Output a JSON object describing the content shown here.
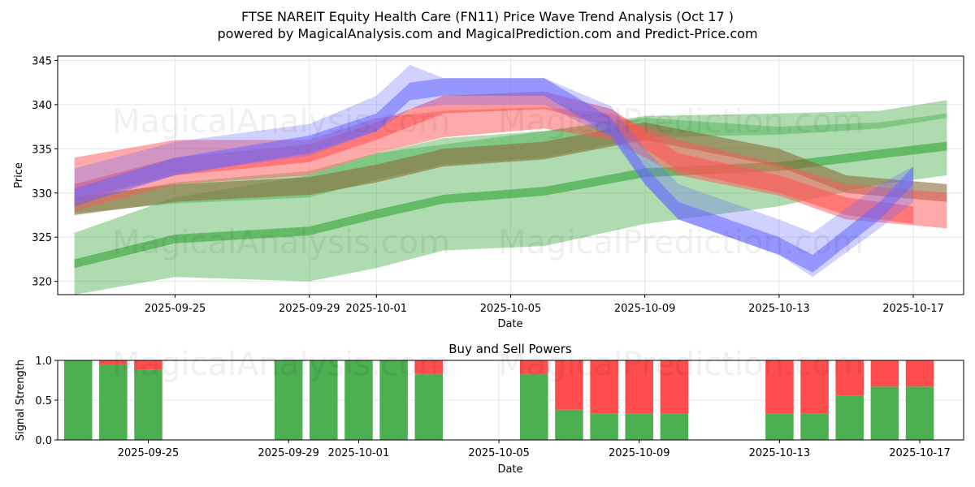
{
  "titles": {
    "line1": "FTSE NAREIT Equity Health Care (FN11) Price Wave Trend Analysis (Oct 17 )",
    "line2": "powered by MagicalAnalysis.com and MagicalPrediction.com and Predict-Price.com"
  },
  "watermarks": [
    "MagicalAnalysis.com",
    "MagicalPrediction.com"
  ],
  "colors": {
    "blue_band": "#6666ff",
    "red_band": "#ff5555",
    "green_band": "#4caf50",
    "brown_band": "#8b6a3a",
    "buy": "#4caf50",
    "sell": "#ff4c4c",
    "grid": "#e6e6e6"
  },
  "chart_data": [
    {
      "type": "area",
      "title": "",
      "xlabel": "Date",
      "ylabel": "Price",
      "x_range": [
        "2025-09-21T12:00",
        "2025-10-18T12:00"
      ],
      "ylim": [
        318.5,
        345.5
      ],
      "yticks": [
        320,
        325,
        330,
        335,
        340,
        345
      ],
      "xticks": [
        {
          "date": "2025-09-25",
          "label": "2025-09-25"
        },
        {
          "date": "2025-09-29",
          "label": "2025-09-29"
        },
        {
          "date": "2025-10-01",
          "label": "2025-10-01"
        },
        {
          "date": "2025-10-05",
          "label": "2025-10-05"
        },
        {
          "date": "2025-10-09",
          "label": "2025-10-09"
        },
        {
          "date": "2025-10-13",
          "label": "2025-10-13"
        },
        {
          "date": "2025-10-17",
          "label": "2025-10-17"
        }
      ],
      "grid": true,
      "bands": [
        {
          "name": "green-wide-lower",
          "color": "green",
          "opacity": 0.45,
          "points": [
            [
              "2025-09-22",
              322
            ],
            [
              "2025-09-25",
              325
            ],
            [
              "2025-09-29",
              326
            ],
            [
              "2025-10-01",
              328
            ],
            [
              "2025-10-03",
              329.5
            ],
            [
              "2025-10-06",
              330.5
            ],
            [
              "2025-10-09",
              332.5
            ],
            [
              "2025-10-13",
              333
            ],
            [
              "2025-10-16",
              334.5
            ],
            [
              "2025-10-18",
              335.5
            ]
          ],
          "half_width": [
            3.5,
            4.5,
            6,
            6.5,
            6,
            6.5,
            6,
            4.5,
            3.5,
            3.5
          ]
        },
        {
          "name": "green-narrow-lower",
          "color": "green",
          "opacity": 0.75,
          "points": [
            [
              "2025-09-22",
              322
            ],
            [
              "2025-09-25",
              324.8
            ],
            [
              "2025-09-29",
              325.7
            ],
            [
              "2025-10-01",
              327.6
            ],
            [
              "2025-10-03",
              329.3
            ],
            [
              "2025-10-06",
              330.2
            ],
            [
              "2025-10-09",
              332.3
            ],
            [
              "2025-10-13",
              333
            ],
            [
              "2025-10-16",
              334.4
            ],
            [
              "2025-10-18",
              335.3
            ]
          ],
          "half_width": [
            0.5,
            0.5,
            0.5,
            0.5,
            0.5,
            0.5,
            0.5,
            0.5,
            0.5,
            0.5
          ]
        },
        {
          "name": "green-wide-upper",
          "color": "green",
          "opacity": 0.45,
          "points": [
            [
              "2025-09-22",
              328.5
            ],
            [
              "2025-09-25",
              330
            ],
            [
              "2025-09-29",
              331
            ],
            [
              "2025-10-01",
              333
            ],
            [
              "2025-10-03",
              334.7
            ],
            [
              "2025-10-06",
              335.5
            ],
            [
              "2025-10-09",
              337.5
            ],
            [
              "2025-10-13",
              337.8
            ],
            [
              "2025-10-16",
              338.3
            ],
            [
              "2025-10-18",
              339.5
            ]
          ],
          "half_width": [
            0.8,
            1.2,
            1.5,
            1.5,
            1.5,
            1.5,
            1.2,
            1.2,
            1,
            1
          ]
        },
        {
          "name": "brown-band",
          "color": "brown",
          "opacity": 0.6,
          "points": [
            [
              "2025-09-22",
              328.5
            ],
            [
              "2025-09-25",
              330
            ],
            [
              "2025-09-29",
              330.8
            ],
            [
              "2025-10-01",
              332.2
            ],
            [
              "2025-10-03",
              334
            ],
            [
              "2025-10-06",
              334.8
            ],
            [
              "2025-10-09",
              337
            ],
            [
              "2025-10-11",
              335.5
            ],
            [
              "2025-10-13",
              334
            ],
            [
              "2025-10-15",
              331
            ],
            [
              "2025-10-18",
              330
            ]
          ],
          "half_width": [
            1,
            1,
            1,
            1,
            1,
            1,
            1,
            1,
            1,
            1,
            1
          ]
        },
        {
          "name": "red-wide",
          "color": "red",
          "opacity": 0.5,
          "points": [
            [
              "2025-09-22",
              331
            ],
            [
              "2025-09-25",
              333.5
            ],
            [
              "2025-09-29",
              334
            ],
            [
              "2025-10-01",
              336.5
            ],
            [
              "2025-10-03",
              337.8
            ],
            [
              "2025-10-06",
              338.5
            ],
            [
              "2025-10-08",
              337.5
            ],
            [
              "2025-10-10",
              334
            ],
            [
              "2025-10-13",
              331.5
            ],
            [
              "2025-10-15",
              329
            ],
            [
              "2025-10-18",
              328
            ]
          ],
          "half_width": [
            3,
            2.5,
            2,
            2,
            1.5,
            1.2,
            1.5,
            2,
            1.8,
            2,
            2
          ]
        },
        {
          "name": "red-narrow",
          "color": "red",
          "opacity": 0.6,
          "points": [
            [
              "2025-09-22",
              330
            ],
            [
              "2025-09-25",
              333
            ],
            [
              "2025-09-29",
              334.5
            ],
            [
              "2025-10-01",
              337
            ],
            [
              "2025-10-03",
              340
            ],
            [
              "2025-10-06",
              340.5
            ],
            [
              "2025-10-08",
              338.5
            ],
            [
              "2025-10-10",
              333.5
            ],
            [
              "2025-10-13",
              331
            ],
            [
              "2025-10-15",
              328.5
            ],
            [
              "2025-10-17",
              327.5
            ]
          ],
          "half_width": [
            1,
            1,
            1,
            1,
            1,
            1,
            1,
            1,
            1,
            1,
            1
          ]
        },
        {
          "name": "blue-wide",
          "color": "blue",
          "opacity": 0.3,
          "points": [
            [
              "2025-09-22",
              331
            ],
            [
              "2025-09-25",
              334
            ],
            [
              "2025-09-29",
              336
            ],
            [
              "2025-10-01",
              339
            ],
            [
              "2025-10-02",
              342
            ],
            [
              "2025-10-03",
              341.5
            ],
            [
              "2025-10-06",
              341.5
            ],
            [
              "2025-10-08",
              338
            ],
            [
              "2025-10-09",
              333
            ],
            [
              "2025-10-10",
              329
            ],
            [
              "2025-10-13",
              325
            ],
            [
              "2025-10-14",
              323
            ],
            [
              "2025-10-16",
              328.5
            ],
            [
              "2025-10-17",
              331
            ]
          ],
          "half_width": [
            1.8,
            1.8,
            1.8,
            2,
            2.5,
            1.5,
            1.5,
            1.8,
            2,
            2,
            2,
            2.5,
            2.5,
            2
          ]
        },
        {
          "name": "blue-narrow",
          "color": "blue",
          "opacity": 0.55,
          "points": [
            [
              "2025-09-22",
              329.5
            ],
            [
              "2025-09-25",
              333
            ],
            [
              "2025-09-29",
              335.5
            ],
            [
              "2025-10-01",
              338
            ],
            [
              "2025-10-02",
              341.5
            ],
            [
              "2025-10-03",
              342
            ],
            [
              "2025-10-06",
              342
            ],
            [
              "2025-10-08",
              337.5
            ],
            [
              "2025-10-09",
              332
            ],
            [
              "2025-10-10",
              328
            ],
            [
              "2025-10-13",
              324
            ],
            [
              "2025-10-14",
              322
            ],
            [
              "2025-10-16",
              328
            ],
            [
              "2025-10-17",
              332
            ]
          ],
          "half_width": [
            1,
            1,
            1,
            1,
            1,
            1,
            1,
            1,
            1,
            1,
            1,
            1,
            1,
            1
          ]
        }
      ]
    },
    {
      "type": "bar",
      "title": "Buy and Sell Powers",
      "xlabel": "Date",
      "ylabel": "Signal Strength",
      "ylim": [
        0,
        1.0
      ],
      "yticks": [
        0.0,
        0.5,
        1.0
      ],
      "ytick_labels": [
        "0.0",
        "0.5",
        "1.0"
      ],
      "xticks": [
        {
          "date": "2025-09-25",
          "label": "2025-09-25"
        },
        {
          "date": "2025-09-29",
          "label": "2025-09-29"
        },
        {
          "date": "2025-10-01",
          "label": "2025-10-01"
        },
        {
          "date": "2025-10-05",
          "label": "2025-10-05"
        },
        {
          "date": "2025-10-09",
          "label": "2025-10-09"
        },
        {
          "date": "2025-10-13",
          "label": "2025-10-13"
        },
        {
          "date": "2025-10-17",
          "label": "2025-10-17"
        }
      ],
      "x_range": [
        "2025-09-22T10:00",
        "2025-10-18T06:00"
      ],
      "categories": [
        "2025-09-23",
        "2025-09-24",
        "2025-09-25",
        "2025-09-29",
        "2025-09-30",
        "2025-10-01",
        "2025-10-02",
        "2025-10-03",
        "2025-10-06",
        "2025-10-07",
        "2025-10-08",
        "2025-10-09",
        "2025-10-10",
        "2025-10-13",
        "2025-10-14",
        "2025-10-15",
        "2025-10-16",
        "2025-10-17"
      ],
      "series": [
        {
          "name": "Buy",
          "color": "buy",
          "values": [
            1.0,
            0.95,
            0.88,
            1.0,
            1.0,
            1.0,
            1.0,
            0.83,
            0.83,
            0.38,
            0.33,
            0.33,
            0.33,
            0.33,
            0.33,
            0.56,
            0.67,
            0.67
          ]
        },
        {
          "name": "Sell",
          "color": "sell",
          "values": [
            0.0,
            0.05,
            0.12,
            0.0,
            0.0,
            0.0,
            0.0,
            0.17,
            0.17,
            0.62,
            0.67,
            0.67,
            0.67,
            0.67,
            0.67,
            0.44,
            0.33,
            0.33
          ]
        }
      ]
    }
  ]
}
